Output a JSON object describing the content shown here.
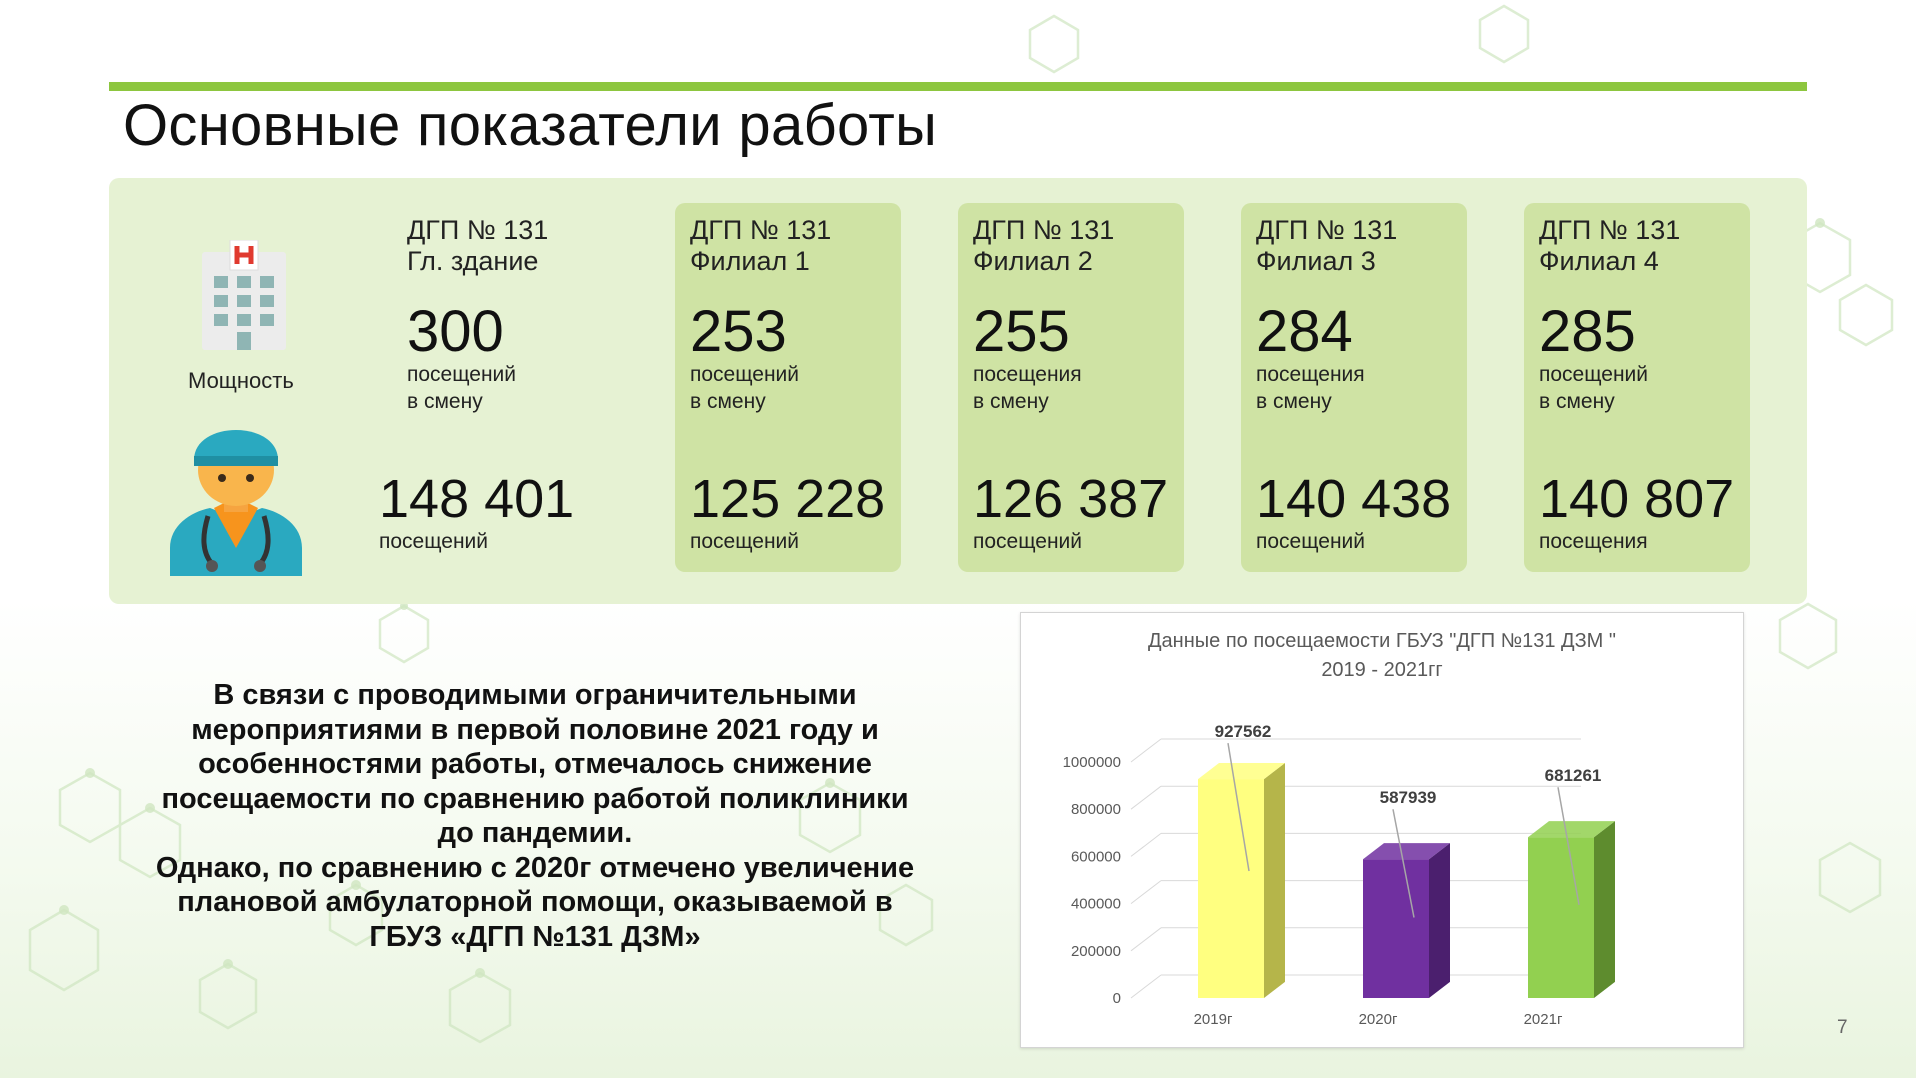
{
  "slide": {
    "title": "Основные показатели работы",
    "page_number": "7",
    "accent_color": "#8dc63f",
    "panel_color": "#e6f2d3",
    "card_color": "#cfe3a4"
  },
  "capacity_label": "Мощность",
  "icons": [
    "hospital-building-icon",
    "doctor-icon"
  ],
  "facilities": [
    {
      "name_line1": "ДГП № 131",
      "name_line2": "Гл. здание",
      "capacity": "300",
      "capacity_unit_line1": "посещений",
      "capacity_unit_line2": "в смену",
      "visits": "148 401",
      "visits_unit": "посещений"
    },
    {
      "name_line1": "ДГП № 131",
      "name_line2": "Филиал 1",
      "capacity": "253",
      "capacity_unit_line1": "посещений",
      "capacity_unit_line2": "в смену",
      "visits": "125 228",
      "visits_unit": "посещений"
    },
    {
      "name_line1": "ДГП № 131",
      "name_line2": "Филиал 2",
      "capacity": "255",
      "capacity_unit_line1": "посещения",
      "capacity_unit_line2": "в смену",
      "visits": "126 387",
      "visits_unit": "посещений"
    },
    {
      "name_line1": "ДГП № 131",
      "name_line2": "Филиал 3",
      "capacity": "284",
      "capacity_unit_line1": "посещения",
      "capacity_unit_line2": "в смену",
      "visits": "140 438",
      "visits_unit": "посещений"
    },
    {
      "name_line1": "ДГП № 131",
      "name_line2": "Филиал 4",
      "capacity": "285",
      "capacity_unit_line1": "посещений",
      "capacity_unit_line2": "в смену",
      "visits": "140 807",
      "visits_unit": "посещения"
    }
  ],
  "note": "В связи с проводимыми ограничительными\nмероприятиями в первой половине 2021 году и\nособенностями работы, отмечалось снижение\nпосещаемости по сравнению работой поликлиники\nдо пандемии.\nОднако, по сравнению с 2020г отмечено увеличение\nплановой амбулаторной помощи, оказываемой в\nГБУЗ «ДГП №131 ДЗМ»",
  "chart_data": {
    "type": "bar",
    "title_line1": "Данные по посещаемости ГБУЗ \"ДГП №131 ДЗМ \"",
    "title_line2": "2019 - 2021гг",
    "categories": [
      "2019г",
      "2020г",
      "2021г"
    ],
    "values": [
      927562,
      587939,
      681261
    ],
    "data_labels": [
      "927562",
      "587939",
      "681261"
    ],
    "bar_colors": [
      "#ffff80",
      "#7030a0",
      "#92d050"
    ],
    "bar_side_colors": [
      "#b5b54a",
      "#4b1f6e",
      "#5e8c2e"
    ],
    "ylim": [
      0,
      1000000
    ],
    "y_ticks": [
      "0",
      "200000",
      "400000",
      "600000",
      "800000",
      "1000000"
    ],
    "grid": true,
    "legend": "none",
    "style": "3d-bar"
  }
}
